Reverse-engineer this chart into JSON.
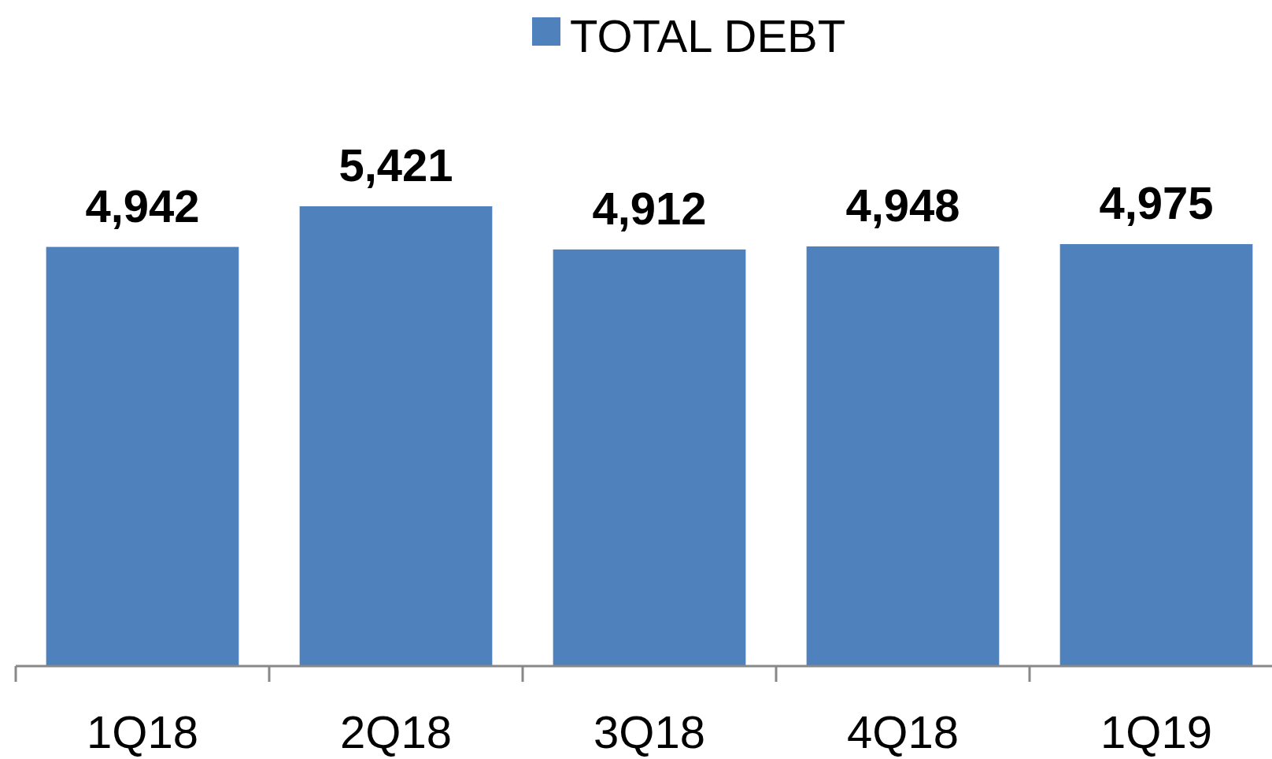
{
  "chart_data": {
    "type": "bar",
    "categories": [
      "1Q18",
      "2Q18",
      "3Q18",
      "4Q18",
      "1Q19"
    ],
    "series": [
      {
        "name": "TOTAL DEBT",
        "color": "#4f81bd",
        "values": [
          4942,
          5421,
          4912,
          4948,
          4975
        ],
        "value_labels": [
          "4,942",
          "5,421",
          "4,912",
          "4,948",
          "4,975"
        ]
      }
    ],
    "legend": "top"
  }
}
